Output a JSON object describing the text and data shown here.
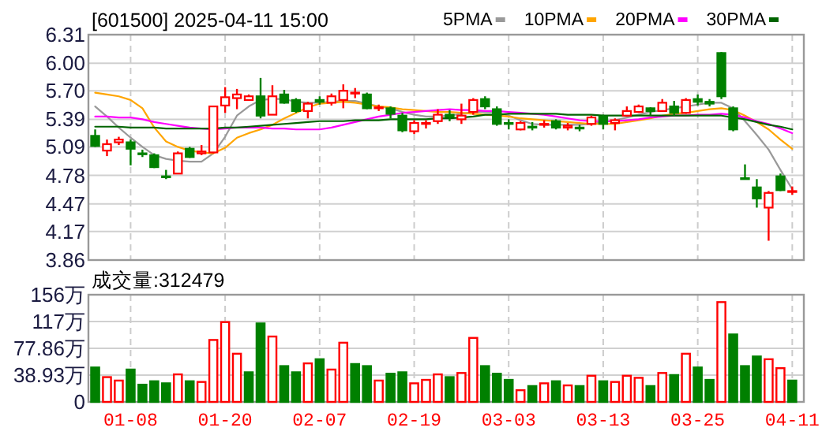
{
  "chart_data": [
    {
      "type": "candlestick",
      "title": "[601500] 2025-04-11 15:00",
      "legend": "top right",
      "grid": true,
      "tick_labels": "y",
      "categories": [
        null,
        null,
        null,
        null,
        null,
        null,
        null,
        null,
        null,
        null,
        null,
        null,
        null,
        null,
        null,
        null,
        null,
        null,
        null,
        null,
        null,
        null,
        null,
        null,
        null,
        null,
        null,
        null,
        null,
        null,
        null,
        null,
        null,
        null,
        null,
        null,
        null,
        null,
        null,
        null,
        null,
        null,
        null,
        null,
        null,
        null,
        null,
        null,
        null,
        null,
        null,
        null,
        null,
        null,
        null,
        null,
        null,
        null,
        null,
        null
      ],
      "ylim": [
        3.86,
        6.31
      ],
      "yticks": [
        3.86,
        4.17,
        4.47,
        4.78,
        5.09,
        5.39,
        {
          "value": 5.7,
          "label": "5.70"
        },
        {
          "value": 6,
          "label": "6.00"
        },
        6.31
      ],
      "ohlc": [
        [
          5.21,
          5.28,
          5.09,
          5.1
        ],
        [
          5.05,
          5.17,
          4.99,
          5.12
        ],
        [
          5.14,
          5.2,
          5.11,
          5.17
        ],
        [
          5.14,
          5.17,
          4.89,
          5.07
        ],
        [
          5.02,
          5.06,
          4.98,
          5.01
        ],
        [
          5.0,
          5.02,
          4.86,
          4.87
        ],
        [
          4.77,
          4.84,
          4.74,
          4.76
        ],
        [
          4.8,
          5.04,
          4.8,
          5.02
        ],
        [
          5.07,
          5.09,
          4.97,
          4.98
        ],
        [
          5.02,
          5.11,
          5.0,
          5.04
        ],
        [
          5.03,
          5.53,
          5.02,
          5.53
        ],
        [
          5.54,
          5.74,
          5.46,
          5.63
        ],
        [
          5.62,
          5.72,
          5.5,
          5.66
        ],
        [
          5.6,
          5.66,
          5.59,
          5.64
        ],
        [
          5.64,
          5.84,
          5.4,
          5.43
        ],
        [
          5.44,
          5.76,
          5.44,
          5.64
        ],
        [
          5.66,
          5.71,
          5.56,
          5.57
        ],
        [
          5.6,
          5.62,
          5.46,
          5.48
        ],
        [
          5.48,
          5.58,
          5.4,
          5.56
        ],
        [
          5.6,
          5.64,
          5.55,
          5.58
        ],
        [
          5.57,
          5.67,
          5.54,
          5.64
        ],
        [
          5.6,
          5.77,
          5.51,
          5.7
        ],
        [
          5.67,
          5.73,
          5.62,
          5.68
        ],
        [
          5.66,
          5.68,
          5.5,
          5.51
        ],
        [
          5.51,
          5.55,
          5.48,
          5.52
        ],
        [
          5.51,
          5.53,
          5.4,
          5.45
        ],
        [
          5.43,
          5.46,
          5.25,
          5.27
        ],
        [
          5.26,
          5.38,
          5.23,
          5.35
        ],
        [
          5.34,
          5.38,
          5.29,
          5.35
        ],
        [
          5.37,
          5.5,
          5.34,
          5.44
        ],
        [
          5.44,
          5.49,
          5.37,
          5.42
        ],
        [
          5.39,
          5.56,
          5.34,
          5.43
        ],
        [
          5.47,
          5.62,
          5.44,
          5.6
        ],
        [
          5.61,
          5.64,
          5.5,
          5.53
        ],
        [
          5.5,
          5.53,
          5.32,
          5.34
        ],
        [
          5.35,
          5.39,
          5.28,
          5.34
        ],
        [
          5.28,
          5.37,
          5.27,
          5.35
        ],
        [
          5.31,
          5.36,
          5.27,
          5.3
        ],
        [
          5.33,
          5.38,
          5.3,
          5.34
        ],
        [
          5.37,
          5.39,
          5.28,
          5.3
        ],
        [
          5.3,
          5.35,
          5.27,
          5.32
        ],
        [
          5.3,
          5.33,
          5.26,
          5.29
        ],
        [
          5.34,
          5.43,
          5.32,
          5.41
        ],
        [
          5.42,
          5.44,
          5.28,
          5.34
        ],
        [
          5.35,
          5.4,
          5.27,
          5.38
        ],
        [
          5.43,
          5.53,
          5.42,
          5.48
        ],
        [
          5.47,
          5.55,
          5.46,
          5.53
        ],
        [
          5.51,
          5.52,
          5.43,
          5.48
        ],
        [
          5.48,
          5.61,
          5.47,
          5.57
        ],
        [
          5.53,
          5.59,
          5.43,
          5.46
        ],
        [
          5.46,
          5.62,
          5.45,
          5.6
        ],
        [
          5.61,
          5.66,
          5.54,
          5.58
        ],
        [
          5.58,
          5.61,
          5.53,
          5.56
        ],
        [
          6.11,
          6.12,
          5.61,
          5.64
        ],
        [
          5.51,
          5.53,
          5.26,
          5.28
        ],
        [
          4.75,
          4.9,
          4.74,
          4.74
        ],
        [
          4.65,
          4.74,
          4.43,
          4.53
        ],
        [
          4.43,
          4.61,
          4.07,
          4.59
        ],
        [
          4.77,
          4.8,
          4.61,
          4.62
        ],
        [
          4.6,
          4.66,
          4.57,
          4.61
        ]
      ],
      "colors": [
        "#008000",
        "#ff0000",
        "#ff0000",
        "#008000",
        "#008000",
        "#008000",
        "#008000",
        "#ff0000",
        "#008000",
        "#ff0000",
        "#ff0000",
        "#ff0000",
        "#ff0000",
        "#ff0000",
        "#008000",
        "#ff0000",
        "#008000",
        "#008000",
        "#ff0000",
        "#008000",
        "#ff0000",
        "#ff0000",
        "#ff0000",
        "#008000",
        "#ff0000",
        "#008000",
        "#008000",
        "#ff0000",
        "#ff0000",
        "#ff0000",
        "#008000",
        "#ff0000",
        "#ff0000",
        "#008000",
        "#008000",
        "#008000",
        "#ff0000",
        "#008000",
        "#ff0000",
        "#008000",
        "#ff0000",
        "#008000",
        "#ff0000",
        "#008000",
        "#ff0000",
        "#ff0000",
        "#ff0000",
        "#008000",
        "#ff0000",
        "#008000",
        "#ff0000",
        "#008000",
        "#008000",
        "#008000",
        "#008000",
        "#008000",
        "#008000",
        "#ff0000",
        "#008000",
        "#ff0000"
      ],
      "series": [
        {
          "type": "line",
          "name": "5PMA",
          "color": "#999999",
          "values": [
            5.53,
            5.42,
            5.3,
            5.19,
            5.09,
            5.0,
            4.96,
            4.94,
            4.93,
            4.93,
            5.02,
            5.2,
            5.43,
            5.53,
            5.6,
            5.61,
            5.61,
            5.58,
            5.57,
            5.57,
            5.58,
            5.59,
            5.59,
            5.56,
            5.53,
            5.51,
            5.47,
            5.44,
            5.42,
            5.42,
            5.43,
            5.45,
            5.47,
            5.47,
            5.46,
            5.43,
            5.38,
            5.34,
            5.33,
            5.33,
            5.33,
            5.33,
            5.34,
            5.36,
            5.38,
            5.41,
            5.44,
            5.47,
            5.49,
            5.51,
            5.53,
            5.55,
            5.57,
            5.57,
            5.51,
            5.37,
            5.22,
            5.06,
            4.84,
            4.63
          ]
        },
        {
          "type": "line",
          "name": "10PMA",
          "color": "#ffa500",
          "values": [
            5.68,
            5.66,
            5.64,
            5.6,
            5.51,
            5.3,
            5.15,
            5.09,
            5.05,
            5.03,
            5.02,
            5.08,
            5.19,
            5.24,
            5.28,
            5.33,
            5.4,
            5.46,
            5.52,
            5.56,
            5.57,
            5.58,
            5.57,
            5.55,
            5.53,
            5.52,
            5.5,
            5.49,
            5.48,
            5.47,
            5.47,
            5.46,
            5.45,
            5.44,
            5.43,
            5.42,
            5.4,
            5.39,
            5.38,
            5.37,
            5.36,
            5.35,
            5.34,
            5.34,
            5.34,
            5.36,
            5.38,
            5.4,
            5.43,
            5.45,
            5.46,
            5.48,
            5.5,
            5.51,
            5.49,
            5.43,
            5.36,
            5.28,
            5.17,
            5.07
          ]
        },
        {
          "type": "line",
          "name": "20PMA",
          "color": "#ff00ff",
          "values": [
            5.42,
            5.42,
            5.41,
            5.41,
            5.39,
            5.36,
            5.34,
            5.32,
            5.3,
            5.29,
            5.28,
            5.29,
            5.3,
            5.3,
            5.3,
            5.29,
            5.29,
            5.28,
            5.28,
            5.28,
            5.3,
            5.33,
            5.36,
            5.39,
            5.42,
            5.44,
            5.46,
            5.47,
            5.48,
            5.49,
            5.5,
            5.49,
            5.49,
            5.48,
            5.48,
            5.47,
            5.46,
            5.45,
            5.44,
            5.42,
            5.4,
            5.38,
            5.37,
            5.37,
            5.37,
            5.38,
            5.39,
            5.41,
            5.42,
            5.43,
            5.43,
            5.44,
            5.44,
            5.45,
            5.44,
            5.41,
            5.37,
            5.34,
            5.29,
            5.24
          ]
        },
        {
          "type": "line",
          "name": "30PMA",
          "color": "#006400",
          "values": [
            5.31,
            5.31,
            5.31,
            5.3,
            5.3,
            5.3,
            5.29,
            5.29,
            5.29,
            5.29,
            5.29,
            5.3,
            5.3,
            5.31,
            5.32,
            5.33,
            5.34,
            5.35,
            5.36,
            5.37,
            5.37,
            5.37,
            5.38,
            5.38,
            5.38,
            5.39,
            5.39,
            5.39,
            5.39,
            5.4,
            5.4,
            5.41,
            5.42,
            5.44,
            5.44,
            5.45,
            5.45,
            5.45,
            5.45,
            5.45,
            5.44,
            5.44,
            5.44,
            5.43,
            5.43,
            5.43,
            5.43,
            5.43,
            5.43,
            5.43,
            5.43,
            5.43,
            5.43,
            5.43,
            5.41,
            5.39,
            5.36,
            5.33,
            5.31,
            5.28
          ]
        }
      ]
    },
    {
      "type": "bar",
      "title": "成交量:312479",
      "grid": true,
      "categories": [
        null,
        null,
        null,
        "01-08",
        null,
        null,
        null,
        null,
        null,
        null,
        null,
        "01-20",
        null,
        null,
        null,
        null,
        null,
        null,
        null,
        "02-07",
        null,
        null,
        null,
        null,
        null,
        null,
        null,
        "02-19",
        null,
        null,
        null,
        null,
        null,
        null,
        null,
        "03-03",
        null,
        null,
        null,
        null,
        null,
        null,
        null,
        "03-13",
        null,
        null,
        null,
        null,
        null,
        null,
        null,
        "03-25",
        null,
        null,
        null,
        null,
        null,
        null,
        null,
        "04-11"
      ],
      "ylim": [
        0,
        155.72
      ],
      "yticks": [
        0,
        {
          "value": 38.93,
          "label": "38.93万"
        },
        {
          "value": 77.86,
          "label": "77.86万"
        },
        {
          "value": 116.79,
          "label": "117万"
        },
        {
          "value": 155.72,
          "label": "156万"
        }
      ],
      "values": [
        50,
        36,
        31,
        47,
        25,
        30,
        27,
        40,
        30,
        29,
        90,
        116,
        70,
        43,
        114,
        95,
        52,
        43,
        56,
        62,
        47,
        86,
        55,
        52,
        31,
        41,
        43,
        27,
        32,
        40,
        36,
        42,
        93,
        52,
        41,
        32,
        17,
        23,
        27,
        30,
        24,
        23,
        38,
        30,
        29,
        38,
        35,
        23,
        42,
        39,
        70,
        50,
        32,
        145,
        98,
        52,
        66,
        62,
        49,
        31
      ],
      "colors": [
        "#008000",
        "#ff0000",
        "#ff0000",
        "#008000",
        "#008000",
        "#008000",
        "#008000",
        "#ff0000",
        "#008000",
        "#ff0000",
        "#ff0000",
        "#ff0000",
        "#ff0000",
        "#008000",
        "#008000",
        "#ff0000",
        "#008000",
        "#008000",
        "#ff0000",
        "#008000",
        "#ff0000",
        "#ff0000",
        "#008000",
        "#008000",
        "#ff0000",
        "#008000",
        "#008000",
        "#ff0000",
        "#ff0000",
        "#ff0000",
        "#008000",
        "#ff0000",
        "#ff0000",
        "#008000",
        "#008000",
        "#008000",
        "#ff0000",
        "#008000",
        "#ff0000",
        "#008000",
        "#ff0000",
        "#008000",
        "#ff0000",
        "#008000",
        "#ff0000",
        "#ff0000",
        "#ff0000",
        "#008000",
        "#ff0000",
        "#008000",
        "#ff0000",
        "#008000",
        "#008000",
        "#ff0000",
        "#008000",
        "#008000",
        "#008000",
        "#ff0000",
        "#ff0000",
        "#008000"
      ]
    }
  ]
}
